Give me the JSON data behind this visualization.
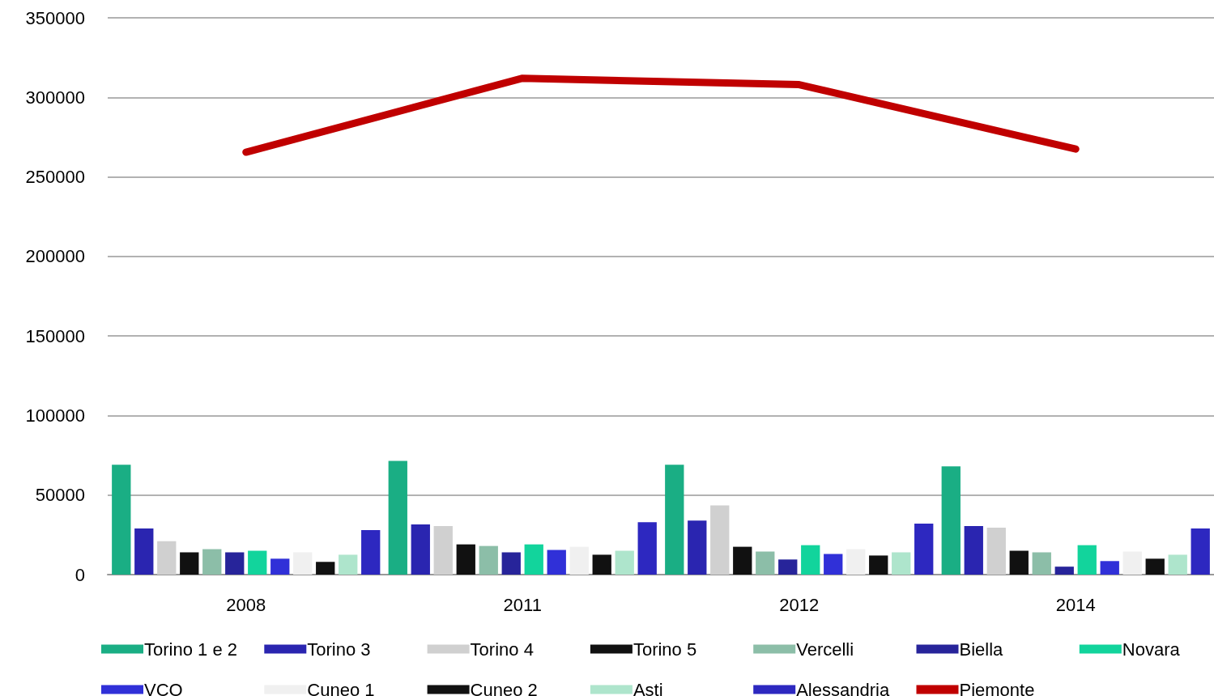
{
  "chart_data": {
    "type": "bar",
    "categories": [
      "2008",
      "2011",
      "2012",
      "2014"
    ],
    "series": [
      {
        "name": "Torino 1 e 2",
        "color": "#1aae84",
        "values": [
          69000,
          71500,
          69000,
          68000
        ]
      },
      {
        "name": "Torino 3",
        "color": "#2a25b0",
        "values": [
          29000,
          31500,
          34000,
          30500
        ]
      },
      {
        "name": "Torino 4",
        "color": "#d0d0d0",
        "values": [
          21000,
          30500,
          43500,
          29500
        ]
      },
      {
        "name": "Torino 5",
        "color": "#111111",
        "values": [
          14000,
          19000,
          17500,
          15000
        ]
      },
      {
        "name": "Vercelli",
        "color": "#8cbea8",
        "values": [
          16000,
          18000,
          14500,
          14000
        ]
      },
      {
        "name": "Biella",
        "color": "#27249a",
        "values": [
          14000,
          14000,
          9500,
          5000
        ]
      },
      {
        "name": "Novara",
        "color": "#12d49c",
        "values": [
          15000,
          19000,
          18500,
          18500
        ]
      },
      {
        "name": "VCO",
        "color": "#3030d8",
        "values": [
          10000,
          15500,
          13000,
          8500
        ]
      },
      {
        "name": "Cuneo 1",
        "color": "#f0f0f0",
        "values": [
          14000,
          17500,
          16000,
          14500
        ]
      },
      {
        "name": "Cuneo 2",
        "color": "#111111",
        "values": [
          8000,
          12500,
          12000,
          10000
        ]
      },
      {
        "name": "Asti",
        "color": "#aee5cc",
        "values": [
          12500,
          15000,
          14000,
          12500
        ]
      },
      {
        "name": "Alessandria",
        "color": "#2d28c0",
        "values": [
          28000,
          33000,
          32000,
          29000
        ]
      },
      {
        "name": "Piemonte",
        "type": "line",
        "color": "#c00000",
        "values": [
          265500,
          312000,
          308000,
          267500
        ]
      }
    ],
    "ylim": [
      0,
      350000
    ],
    "yticks": [
      0,
      50000,
      100000,
      150000,
      200000,
      250000,
      300000,
      350000
    ],
    "grid": "y",
    "legend": "bottom"
  }
}
